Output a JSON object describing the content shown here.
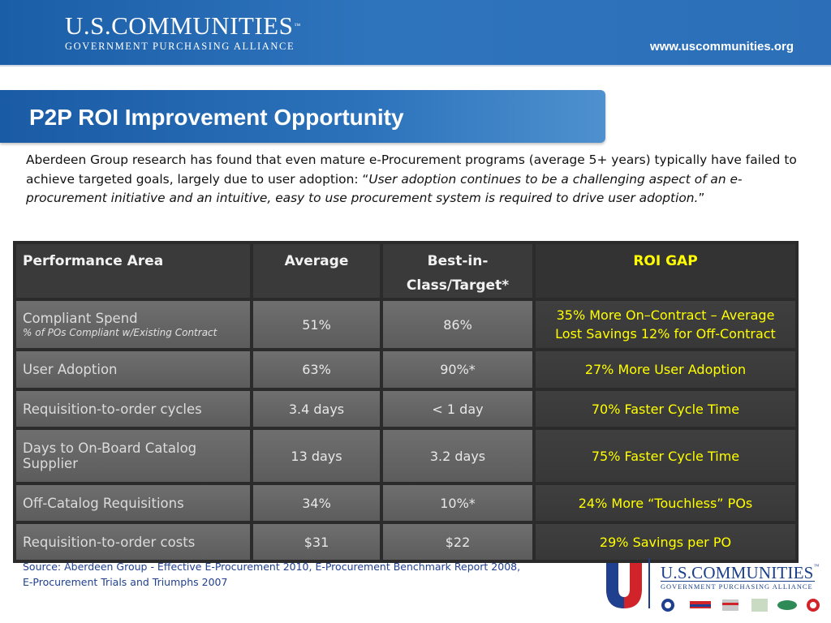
{
  "header": {
    "brand_name": "U.S.COMMUNITIES",
    "brand_tm": "™",
    "brand_subtitle": "GOVERNMENT PURCHASING ALLIANCE",
    "website": "www.uscommunities.org"
  },
  "slide": {
    "title": "P2P ROI Improvement Opportunity",
    "intro_plain": "Aberdeen Group research has found that even mature e-Procurement programs (average 5+ years) typically have failed to achieve targeted goals, largely due to user adoption:  “",
    "intro_italic": "User adoption continues to be a challenging aspect of an e-procurement initiative and an intuitive, easy to use procurement system is required to drive user adoption.",
    "intro_close": "”"
  },
  "table": {
    "headers": {
      "area": "Performance Area",
      "average": "Average",
      "best": "Best-in-Class/Target*",
      "gap": "ROI GAP"
    },
    "rows": [
      {
        "area": "Compliant Spend",
        "area_sub": "% of POs Compliant w/Existing Contract",
        "average": "51%",
        "best": "86%",
        "gap_line1": "35% More On–Contract – Average",
        "gap_line2": "Lost Savings 12% for Off-Contract"
      },
      {
        "area": "User Adoption",
        "average": "63%",
        "best": "90%*",
        "gap_line1": "27% More User Adoption"
      },
      {
        "area": "Requisition-to-order cycles",
        "average": "3.4 days",
        "best": "< 1 day",
        "gap_line1": "70% Faster Cycle Time"
      },
      {
        "area": "Days to On-Board Catalog Supplier",
        "average": "13 days",
        "best": "3.2 days",
        "gap_line1": "75% Faster Cycle Time"
      },
      {
        "area": "Off-Catalog Requisitions",
        "average": "34%",
        "best": "10%*",
        "gap_line1": "24% More “Touchless” POs"
      },
      {
        "area": "Requisition-to-order costs",
        "average": "$31",
        "best": "$22",
        "gap_line1": "29% Savings per PO"
      }
    ]
  },
  "source": {
    "line1": "Source: Aberdeen Group - Effective E-Procurement 2010, E-Procurement Benchmark Report 2008,",
    "line2": "E-Procurement Trials and Triumphs 2007"
  },
  "footer_logo": {
    "name": "U.S.COMMUNITIES",
    "tm": "™",
    "subtitle": "GOVERNMENT PURCHASING ALLIANCE"
  },
  "colors": {
    "banner_blue": "#1b5ea8",
    "gap_text": "#ffff00",
    "table_bg": "#2b2b2b",
    "source_text": "#1f3f8f"
  }
}
